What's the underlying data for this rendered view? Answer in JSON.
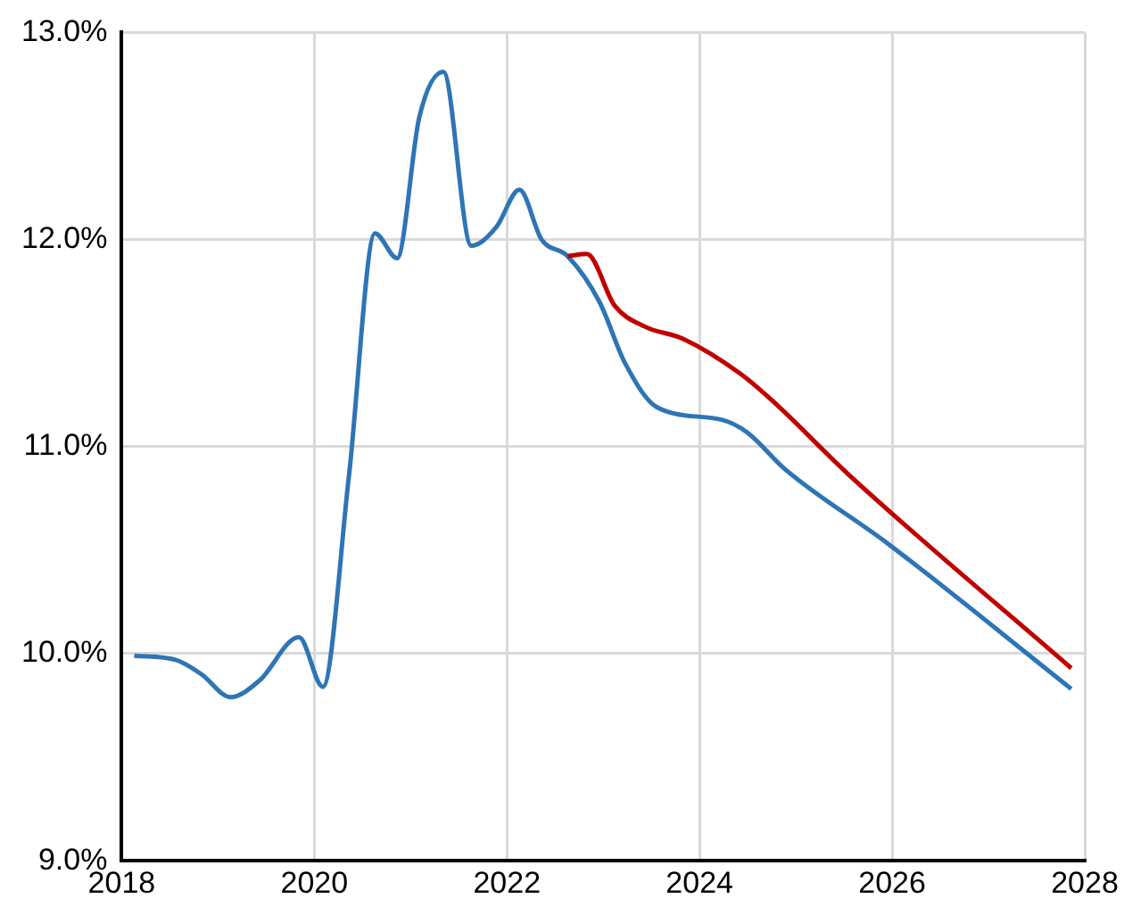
{
  "chart_data": {
    "type": "line",
    "xlim": [
      2018,
      2028
    ],
    "xticks": [
      2018,
      2020,
      2022,
      2024,
      2026,
      2028
    ],
    "ylim": [
      9,
      13
    ],
    "yticks": [
      {
        "value": 9,
        "label": "9.0%"
      },
      {
        "value": 10,
        "label": "10.0%"
      },
      {
        "value": 11,
        "label": "11.0%"
      },
      {
        "value": 12,
        "label": "12.0%"
      },
      {
        "value": 13,
        "label": "13.0%"
      }
    ],
    "grid": true,
    "marker": "none",
    "line_style": "solid",
    "series": [
      {
        "color": "#c00000",
        "x": [
          2022.63,
          2022.83,
          2023.12,
          2023.43,
          2023.83,
          2024.43,
          2024.76,
          2025.56,
          2027.86
        ],
        "values": [
          11.92,
          11.93,
          11.68,
          11.58,
          11.52,
          11.35,
          11.22,
          10.86,
          9.93
        ]
      },
      {
        "color": "#2e75b6",
        "x": [
          2018.13,
          2018.56,
          2018.83,
          2019.13,
          2019.43,
          2019.84,
          2020.09,
          2020.36,
          2020.63,
          2020.86,
          2021.09,
          2021.34,
          2021.63,
          2021.89,
          2022.13,
          2022.36,
          2022.63,
          2022.96,
          2023.23,
          2023.56,
          2024.23,
          2024.49,
          2024.89,
          2025.96,
          2027.86
        ],
        "values": [
          9.99,
          9.97,
          9.9,
          9.79,
          9.87,
          10.08,
          9.84,
          10.86,
          12.03,
          11.91,
          12.59,
          12.81,
          11.97,
          12.06,
          12.24,
          12.0,
          11.92,
          11.7,
          11.4,
          11.19,
          11.13,
          11.07,
          10.89,
          10.53,
          9.83
        ]
      }
    ]
  }
}
